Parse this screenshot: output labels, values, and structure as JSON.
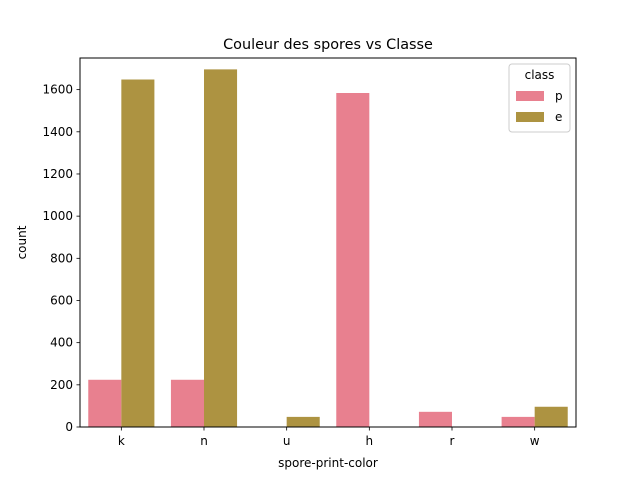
{
  "chart_data": {
    "type": "bar",
    "title": "Couleur des spores vs Classe",
    "xlabel": "spore-print-color",
    "ylabel": "count",
    "categories": [
      "k",
      "n",
      "u",
      "h",
      "r",
      "w"
    ],
    "ylim": [
      0,
      1750
    ],
    "yticks": [
      0,
      200,
      400,
      600,
      800,
      1000,
      1200,
      1400,
      1600
    ],
    "grid": false,
    "legend": {
      "title": "class",
      "placement": "top-right"
    },
    "series": [
      {
        "name": "p",
        "color": "#e8808f",
        "values": [
          224,
          224,
          0,
          1584,
          72,
          48
        ]
      },
      {
        "name": "e",
        "color": "#ad9341",
        "values": [
          1648,
          1696,
          48,
          0,
          0,
          96
        ]
      }
    ]
  }
}
